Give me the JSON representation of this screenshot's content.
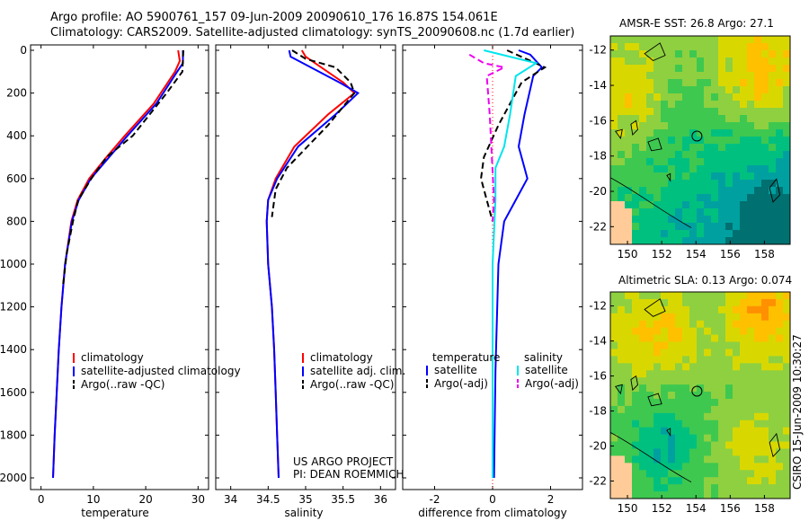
{
  "title_line1": "Argo profile: AO 5900761_157 09-Jun-2009 20090610_176 16.87S 154.061E",
  "title_line2": "Climatology: CARS2009. Satellite-adjusted climatology: synTS_20090608.nc (1.7d earlier)",
  "stamp": "CSIRO 15-Jun-2009 10:30:27",
  "colors": {
    "climatology": "#ff0000",
    "satellite": "#0000ff",
    "argo": "#000000",
    "sal_satellite": "#00e5ee",
    "sal_argo": "#ee00ee",
    "zero_line": "#ff0000"
  },
  "chart_data": [
    {
      "type": "line",
      "xlabel": "temperature",
      "ylabel": "",
      "xlim": [
        -2,
        32
      ],
      "ylim": [
        0,
        2060
      ],
      "y_reversed": true,
      "xticks": [
        0,
        10,
        20,
        30
      ],
      "yticks": [
        0,
        200,
        400,
        600,
        800,
        1000,
        1200,
        1400,
        1600,
        1800,
        2000
      ],
      "legend": {
        "position": "lower-right",
        "entries": [
          {
            "label": "climatology",
            "color": "#ff0000",
            "style": "solid"
          },
          {
            "label": "satellite-adjusted climatology",
            "color": "#0000ff",
            "style": "solid"
          },
          {
            "label": "Argo(..raw -QC)",
            "color": "#000000",
            "style": "dashed"
          }
        ]
      },
      "series": [
        {
          "name": "climatology",
          "color": "#ff0000",
          "style": "solid",
          "points": [
            [
              26.2,
              0
            ],
            [
              26.5,
              50
            ],
            [
              25.6,
              100
            ],
            [
              21.5,
              250
            ],
            [
              16,
              400
            ],
            [
              12.5,
              500
            ],
            [
              9.2,
              600
            ],
            [
              7,
              700
            ],
            [
              5.8,
              800
            ],
            [
              4.6,
              1000
            ],
            [
              3.9,
              1200
            ],
            [
              3.4,
              1400
            ],
            [
              3.0,
              1600
            ],
            [
              2.6,
              1800
            ],
            [
              2.3,
              2000
            ]
          ]
        },
        {
          "name": "satellite-adjusted climatology",
          "color": "#0000ff",
          "style": "solid",
          "points": [
            [
              27.1,
              0
            ],
            [
              27.1,
              60
            ],
            [
              26,
              100
            ],
            [
              22,
              250
            ],
            [
              16.5,
              400
            ],
            [
              13,
              500
            ],
            [
              9.5,
              600
            ],
            [
              7.2,
              700
            ],
            [
              5.9,
              800
            ],
            [
              4.6,
              1000
            ],
            [
              3.9,
              1200
            ],
            [
              3.4,
              1400
            ],
            [
              3.0,
              1600
            ],
            [
              2.6,
              1800
            ],
            [
              2.3,
              2000
            ]
          ]
        },
        {
          "name": "Argo(..raw -QC)",
          "color": "#000000",
          "style": "dashed",
          "points": [
            [
              27.2,
              0
            ],
            [
              27.1,
              40
            ],
            [
              27.0,
              100
            ],
            [
              24,
              200
            ],
            [
              17.5,
              400
            ],
            [
              12.5,
              500
            ],
            [
              9.6,
              600
            ],
            [
              7.1,
              700
            ],
            [
              6.1,
              800
            ],
            [
              4.9,
              950
            ],
            [
              4.2,
              1100
            ]
          ]
        }
      ]
    },
    {
      "type": "line",
      "xlabel": "salinity",
      "ylabel": "",
      "xlim": [
        33.8,
        36.2
      ],
      "ylim": [
        0,
        2060
      ],
      "y_reversed": true,
      "xticks": [
        34,
        34.5,
        35,
        35.5,
        36
      ],
      "legend": {
        "position": "lower-right",
        "entries": [
          {
            "label": "climatology",
            "color": "#ff0000",
            "style": "solid"
          },
          {
            "label": "satellite adj. clim.",
            "color": "#0000ff",
            "style": "solid"
          },
          {
            "label": "Argo(..raw -QC)",
            "color": "#000000",
            "style": "dashed"
          }
        ]
      },
      "annotations": [
        "US ARGO PROJECT",
        "PI: DEAN ROEMMICH"
      ],
      "series": [
        {
          "name": "climatology",
          "color": "#ff0000",
          "style": "solid",
          "points": [
            [
              34.95,
              0
            ],
            [
              35.0,
              30
            ],
            [
              35.5,
              150
            ],
            [
              35.65,
              200
            ],
            [
              35.3,
              300
            ],
            [
              34.85,
              450
            ],
            [
              34.6,
              600
            ],
            [
              34.5,
              700
            ],
            [
              34.48,
              800
            ],
            [
              34.5,
              1000
            ],
            [
              34.55,
              1200
            ],
            [
              34.58,
              1400
            ],
            [
              34.6,
              1600
            ],
            [
              34.62,
              1800
            ],
            [
              34.64,
              2000
            ]
          ]
        },
        {
          "name": "satellite adj. clim.",
          "color": "#0000ff",
          "style": "solid",
          "points": [
            [
              34.78,
              0
            ],
            [
              34.8,
              30
            ],
            [
              35.45,
              150
            ],
            [
              35.7,
              200
            ],
            [
              35.4,
              300
            ],
            [
              34.9,
              450
            ],
            [
              34.62,
              600
            ],
            [
              34.5,
              700
            ],
            [
              34.48,
              800
            ],
            [
              34.5,
              1000
            ],
            [
              34.55,
              1200
            ],
            [
              34.58,
              1400
            ],
            [
              34.6,
              1600
            ],
            [
              34.62,
              1800
            ],
            [
              34.64,
              2000
            ]
          ]
        },
        {
          "name": "Argo(..raw -QC)",
          "color": "#000000",
          "style": "dashed",
          "points": [
            [
              34.82,
              0
            ],
            [
              35.0,
              40
            ],
            [
              35.4,
              80
            ],
            [
              35.6,
              150
            ],
            [
              35.65,
              200
            ],
            [
              35.3,
              350
            ],
            [
              34.75,
              550
            ],
            [
              34.6,
              650
            ],
            [
              34.55,
              780
            ]
          ]
        }
      ]
    },
    {
      "type": "line",
      "xlabel": "difference from climatology",
      "ylabel": "",
      "xlim": [
        -3.1,
        3.1
      ],
      "ylim": [
        0,
        2060
      ],
      "y_reversed": true,
      "xticks": [
        -2,
        0,
        2
      ],
      "legend": {
        "position": "lower-center",
        "entries": [
          {
            "label": "temperature",
            "color": "",
            "style": "header"
          },
          {
            "label": "satellite",
            "color": "#0000ff",
            "style": "solid"
          },
          {
            "label": "Argo(-adj)",
            "color": "#000000",
            "style": "dashed"
          },
          {
            "label": "salinity",
            "color": "",
            "style": "header"
          },
          {
            "label": "satellite",
            "color": "#00e5ee",
            "style": "solid"
          },
          {
            "label": "Argo(-adj)",
            "color": "#ee00ee",
            "style": "dashed"
          }
        ]
      },
      "series": [
        {
          "name": "satellite",
          "color": "#0000ff",
          "style": "solid",
          "points": [
            [
              0.9,
              0
            ],
            [
              1.3,
              20
            ],
            [
              1.7,
              80
            ],
            [
              1.4,
              120
            ],
            [
              1.1,
              300
            ],
            [
              0.9,
              450
            ],
            [
              1.1,
              550
            ],
            [
              1.2,
              600
            ],
            [
              0.8,
              700
            ],
            [
              0.4,
              800
            ],
            [
              0.2,
              1000
            ],
            [
              0.1,
              1500
            ],
            [
              0.05,
              2000
            ]
          ]
        },
        {
          "name": "Argo(-adj)",
          "color": "#000000",
          "style": "dashed",
          "points": [
            [
              0.5,
              0
            ],
            [
              1.8,
              80
            ],
            [
              1.0,
              150
            ],
            [
              0.8,
              200
            ],
            [
              0.2,
              350
            ],
            [
              -0.3,
              500
            ],
            [
              -0.4,
              600
            ],
            [
              -0.2,
              700
            ],
            [
              0,
              800
            ]
          ]
        },
        {
          "name": "satellite",
          "color": "#00e5ee",
          "style": "solid",
          "points": [
            [
              -0.3,
              0
            ],
            [
              1.5,
              60
            ],
            [
              0.8,
              120
            ],
            [
              0.6,
              300
            ],
            [
              0.4,
              450
            ],
            [
              0.1,
              550
            ],
            [
              0.1,
              700
            ],
            [
              0,
              1000
            ],
            [
              0,
              1500
            ],
            [
              0,
              2000
            ]
          ]
        },
        {
          "name": "Argo(-adj)",
          "color": "#ee00ee",
          "style": "dashed",
          "points": [
            [
              -0.8,
              20
            ],
            [
              -0.3,
              60
            ],
            [
              0.4,
              80
            ],
            [
              -0.2,
              120
            ],
            [
              -0.1,
              300
            ],
            [
              0.05,
              700
            ],
            [
              0,
              800
            ]
          ]
        }
      ]
    },
    {
      "type": "heatmap",
      "title": "AMSR-E SST: 26.8 Argo: 27.1",
      "xlim": [
        149,
        159.5
      ],
      "ylim": [
        -23,
        -11.2
      ],
      "xticks": [
        150,
        152,
        154,
        156,
        158
      ],
      "yticks": [
        -12,
        -14,
        -16,
        -18,
        -20,
        -22
      ],
      "marker": {
        "lon": 154.06,
        "lat": -16.87
      },
      "colors": [
        "#007070",
        "#00a0a0",
        "#00c080",
        "#3ec850",
        "#8ed040",
        "#d8d800",
        "#ffc000",
        "#ff9000"
      ]
    },
    {
      "type": "heatmap",
      "title": "Altimetric SLA: 0.13 Argo: 0.074",
      "xlim": [
        149,
        159.5
      ],
      "ylim": [
        -23,
        -11.2
      ],
      "xticks": [
        150,
        152,
        154,
        156,
        158
      ],
      "yticks": [
        -12,
        -14,
        -16,
        -18,
        -20,
        -22
      ],
      "marker": {
        "lon": 154.06,
        "lat": -16.87
      },
      "colors": [
        "#00a0a0",
        "#00c080",
        "#3ec850",
        "#8ed040",
        "#d8d800",
        "#ffc000",
        "#ff9000"
      ]
    }
  ]
}
